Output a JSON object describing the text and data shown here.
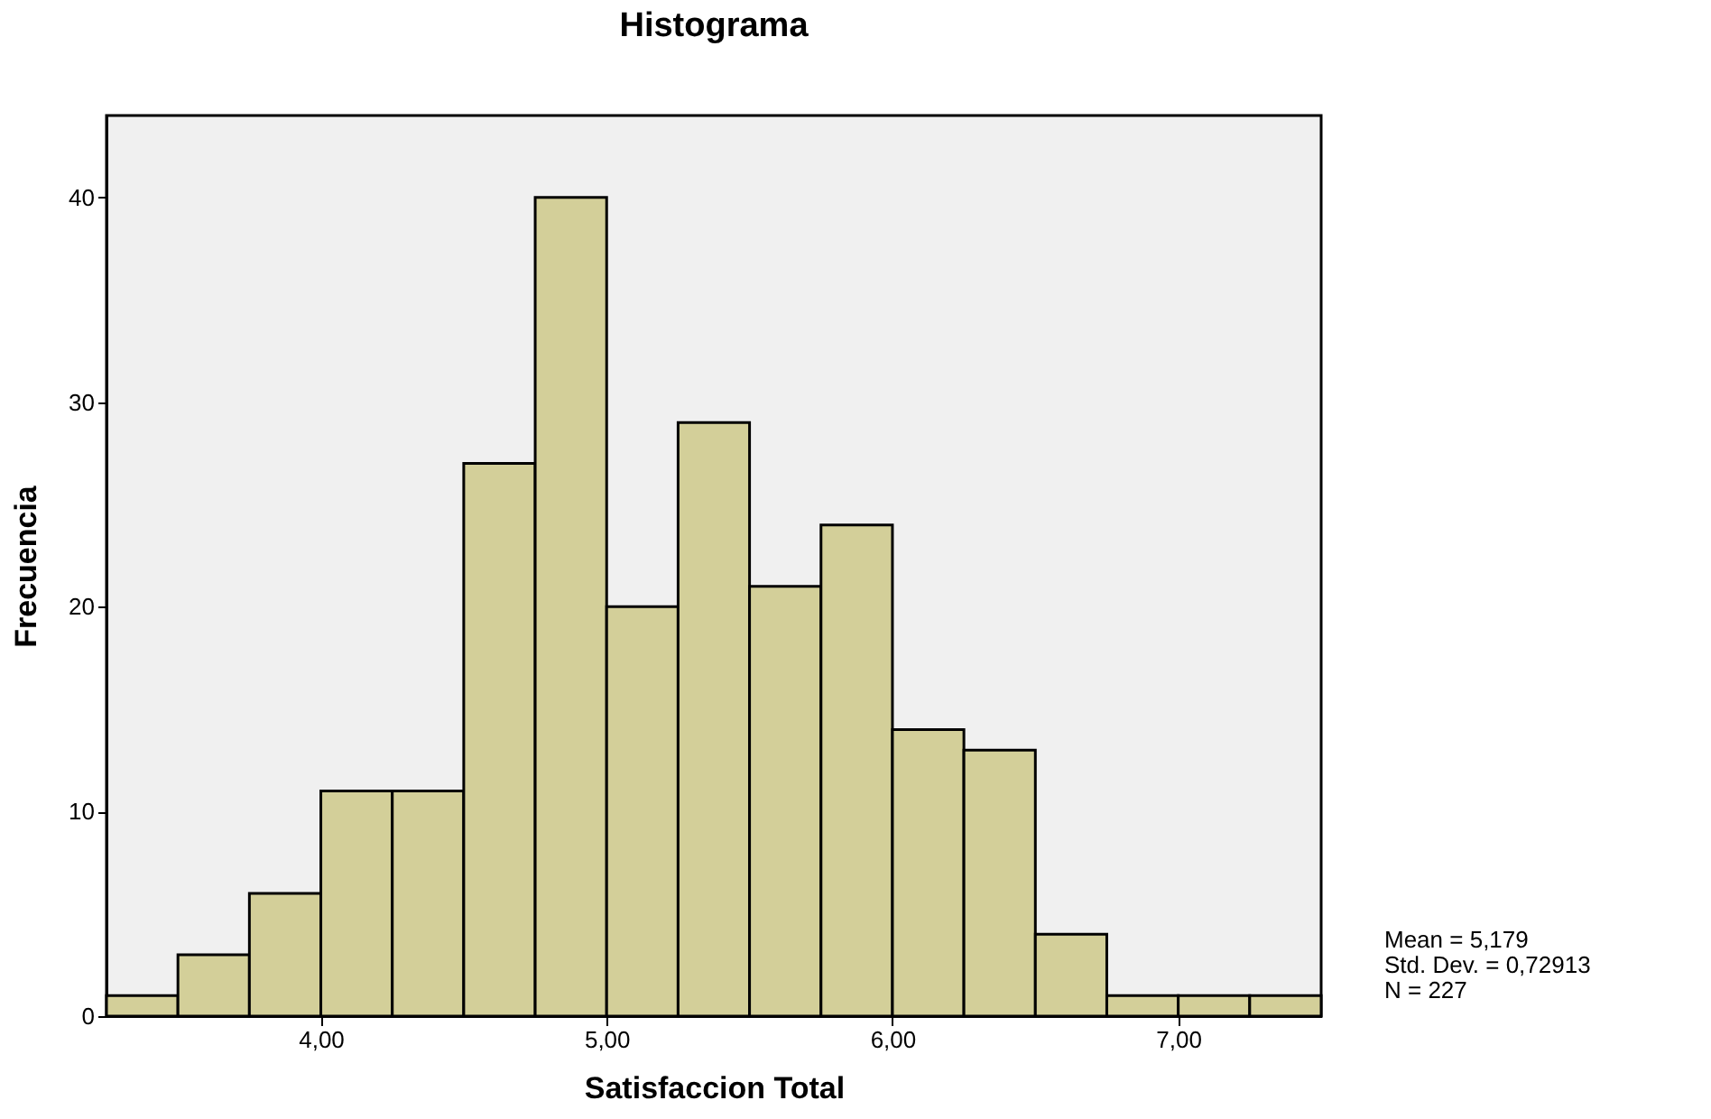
{
  "chart_data": {
    "type": "histogram",
    "title": "Histograma",
    "xlabel": "Satisfaccion Total",
    "ylabel": "Frecuencia",
    "bins": [
      3.25,
      3.5,
      3.75,
      4.0,
      4.25,
      4.5,
      4.75,
      5.0,
      5.25,
      5.5,
      5.75,
      6.0,
      6.25,
      6.5,
      6.75,
      7.0,
      7.25,
      7.5
    ],
    "values": [
      1,
      3,
      6,
      11,
      11,
      27,
      40,
      20,
      29,
      21,
      24,
      14,
      13,
      4,
      1,
      1,
      1
    ],
    "color": "#d3cf99",
    "xlim": [
      3.25,
      7.5
    ],
    "xticks": [
      {
        "value": 4,
        "label": "4,00"
      },
      {
        "value": 5,
        "label": "5,00"
      },
      {
        "value": 6,
        "label": "6,00"
      },
      {
        "value": 7,
        "label": "7,00"
      }
    ],
    "ylim": [
      0,
      44
    ],
    "yticks": [
      0,
      10,
      20,
      30,
      40
    ],
    "grid": false,
    "annotations": [
      "Mean = 5,179",
      "Std. Dev. = 0,72913",
      "N = 227"
    ]
  }
}
